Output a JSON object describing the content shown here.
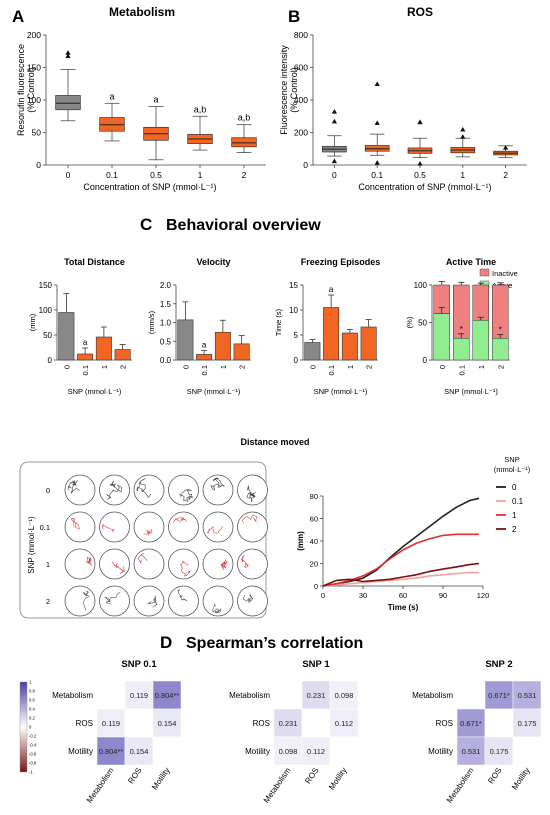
{
  "panels": {
    "A": {
      "letter": "A",
      "title": "Metabolism",
      "ylabel_1": "Resorufin fluorescence",
      "ylabel_2": "(% Control)",
      "xlabel": "Concentration of SNP (mmol·L⁻¹)"
    },
    "B": {
      "letter": "B",
      "title": "ROS",
      "ylabel_1": "Fluorescence intensity",
      "ylabel_2": "(% Control)",
      "xlabel": "Concentration of SNP (mmol·L⁻¹)"
    },
    "C": {
      "letter": "C",
      "title": "Behavioral overview"
    },
    "D": {
      "letter": "D",
      "title": "Spearman’s correlation"
    }
  },
  "colors": {
    "control": "#888888",
    "treated": "#f26522",
    "inactive": "#f08080",
    "active": "#90ee90",
    "heat_pos": "#5a4fb5",
    "heat_neg": "#8b1a1a",
    "line_0": "#222222",
    "line_01": "#f4a0a0",
    "line_1": "#e03030",
    "line_2": "#7a1010"
  },
  "chart_data": [
    {
      "id": "metabolism",
      "type": "box",
      "title": "Metabolism",
      "categories": [
        "0",
        "0.1",
        "0.5",
        "1",
        "2"
      ],
      "xlabel": "Concentration of SNP (mmol·L⁻¹)",
      "ylabel": "Resorufin fluorescence (% Control)",
      "ylim": [
        0,
        200
      ],
      "yticks": [
        "0",
        "50",
        "100",
        "150",
        "200"
      ],
      "boxes": [
        {
          "min": 68,
          "q1": 85,
          "median": 95,
          "q3": 107,
          "max": 147,
          "outliers": [
            168,
            173
          ]
        },
        {
          "min": 37,
          "q1": 52,
          "median": 62,
          "q3": 73,
          "max": 95,
          "outliers": []
        },
        {
          "min": 8,
          "q1": 38,
          "median": 48,
          "q3": 58,
          "max": 90,
          "outliers": []
        },
        {
          "min": 23,
          "q1": 33,
          "median": 40,
          "q3": 47,
          "max": 75,
          "outliers": []
        },
        {
          "min": 19,
          "q1": 28,
          "median": 34,
          "q3": 42,
          "max": 62,
          "outliers": []
        }
      ],
      "annotations": [
        "",
        "a",
        "a",
        "a,b",
        "a,b"
      ]
    },
    {
      "id": "ros",
      "type": "box",
      "title": "ROS",
      "categories": [
        "0",
        "0.1",
        "0.5",
        "1",
        "2"
      ],
      "xlabel": "Concentration of SNP (mmol·L⁻¹)",
      "ylabel": "Fluorescence intensity (% Control)",
      "ylim": [
        0,
        800
      ],
      "yticks": [
        "0",
        "200",
        "400",
        "600",
        "800"
      ],
      "boxes": [
        {
          "min": 55,
          "q1": 80,
          "median": 98,
          "q3": 115,
          "max": 180,
          "outliers": [
            330,
            270,
            25
          ]
        },
        {
          "min": 60,
          "q1": 85,
          "median": 100,
          "q3": 120,
          "max": 190,
          "outliers": [
            500,
            260,
            15
          ]
        },
        {
          "min": 45,
          "q1": 72,
          "median": 88,
          "q3": 105,
          "max": 165,
          "outliers": [
            265,
            265,
            10
          ]
        },
        {
          "min": 50,
          "q1": 75,
          "median": 92,
          "q3": 108,
          "max": 165,
          "outliers": [
            220,
            175
          ]
        },
        {
          "min": 45,
          "q1": 62,
          "median": 73,
          "q3": 85,
          "max": 118,
          "outliers": [
            108
          ]
        }
      ]
    },
    {
      "id": "total-distance",
      "type": "bar",
      "title": "Total Distance",
      "ylabel": "(mm)",
      "xlabel": "SNP (mmol·L⁻¹)",
      "categories": [
        "0",
        "0.1",
        "1",
        "2"
      ],
      "values": [
        95,
        12,
        46,
        21
      ],
      "errors": [
        38,
        12,
        20,
        10
      ],
      "ylim": [
        0,
        150
      ],
      "yticks": [
        "0",
        "50",
        "100",
        "150"
      ],
      "annotations": [
        "",
        "a",
        "",
        ""
      ]
    },
    {
      "id": "velocity",
      "type": "bar",
      "title": "Velocity",
      "ylabel": "(mm/s)",
      "xlabel": "SNP (mmol·L⁻¹)",
      "categories": [
        "0",
        "0.1",
        "1",
        "2"
      ],
      "values": [
        1.07,
        0.15,
        0.74,
        0.43
      ],
      "errors": [
        0.48,
        0.1,
        0.32,
        0.22
      ],
      "ylim": [
        0,
        2.0
      ],
      "yticks": [
        "0.0",
        "0.5",
        "1.0",
        "1.5",
        "2.0"
      ],
      "annotations": [
        "",
        "a",
        "",
        ""
      ]
    },
    {
      "id": "freezing",
      "type": "bar",
      "title": "Freezing Episodes",
      "ylabel": "Time (s)",
      "xlabel": "SNP (mmol·L⁻¹)",
      "categories": [
        "0",
        "0.1",
        "1",
        "2"
      ],
      "values": [
        3.5,
        10.5,
        5.4,
        6.6
      ],
      "errors": [
        0.6,
        2.5,
        0.7,
        1.5
      ],
      "ylim": [
        0,
        15
      ],
      "yticks": [
        "0",
        "5",
        "10",
        "15"
      ],
      "annotations": [
        "",
        "a",
        "",
        ""
      ]
    },
    {
      "id": "active-time",
      "type": "stacked-bar",
      "title": "Active Time",
      "ylabel": "(%)",
      "xlabel": "SNP (mmol·L⁻¹)",
      "categories": [
        "0",
        "0.1",
        "1",
        "2"
      ],
      "series": [
        {
          "name": "Active",
          "values": [
            62,
            29,
            53,
            29
          ],
          "errors": [
            8,
            6,
            4,
            5
          ]
        },
        {
          "name": "Inactive",
          "values": [
            38,
            71,
            47,
            71
          ],
          "errors": [
            8,
            6,
            4,
            5
          ]
        }
      ],
      "ylim": [
        0,
        100
      ],
      "yticks": [
        "0",
        "50",
        "100"
      ],
      "annotations": [
        "",
        "*",
        "",
        "*"
      ]
    },
    {
      "id": "distance-moved",
      "type": "line",
      "title": "Distance moved",
      "xlabel": "Time (s)",
      "ylabel": "(mm)",
      "xlim": [
        0,
        120
      ],
      "ylim": [
        0,
        80
      ],
      "xticks": [
        "0",
        "30",
        "60",
        "90",
        "120"
      ],
      "yticks": [
        "0",
        "20",
        "40",
        "60",
        "80"
      ],
      "legend_title": "SNP (mmol·L⁻¹)",
      "series": [
        {
          "name": "0",
          "x": [
            0,
            10,
            20,
            30,
            40,
            50,
            60,
            70,
            80,
            90,
            100,
            110,
            117
          ],
          "y": [
            0,
            2,
            4,
            7,
            14,
            25,
            35,
            44,
            53,
            62,
            70,
            76,
            78
          ]
        },
        {
          "name": "0.1",
          "x": [
            0,
            10,
            20,
            30,
            40,
            50,
            60,
            70,
            80,
            90,
            100,
            110,
            117
          ],
          "y": [
            0,
            1,
            2,
            3,
            4,
            5,
            6,
            7,
            9,
            10,
            11,
            12,
            12
          ]
        },
        {
          "name": "1",
          "x": [
            0,
            10,
            20,
            30,
            40,
            50,
            60,
            70,
            80,
            90,
            100,
            110,
            117
          ],
          "y": [
            0,
            2,
            5,
            9,
            15,
            24,
            32,
            38,
            42,
            45,
            46,
            46,
            46
          ]
        },
        {
          "name": "2",
          "x": [
            0,
            10,
            20,
            30,
            40,
            50,
            60,
            70,
            80,
            90,
            100,
            110,
            117
          ],
          "y": [
            0,
            5,
            6,
            4,
            5,
            6,
            8,
            10,
            13,
            15,
            17,
            19,
            20
          ]
        }
      ]
    },
    {
      "id": "heatmap-snp01",
      "type": "heatmap",
      "title": "SNP 0.1",
      "rows": [
        "Metabolism",
        "ROS",
        "Motility"
      ],
      "cols": [
        "Metabolism",
        "ROS",
        "Motility"
      ],
      "values": [
        [
          1,
          0.119,
          0.804
        ],
        [
          0.119,
          1,
          0.154
        ],
        [
          0.804,
          0.154,
          1
        ]
      ],
      "labels": [
        [
          "",
          "0.119",
          "0.804**"
        ],
        [
          "0.119",
          "",
          "0.154"
        ],
        [
          "0.804**",
          "0.154",
          ""
        ]
      ]
    },
    {
      "id": "heatmap-snp1",
      "type": "heatmap",
      "title": "SNP 1",
      "rows": [
        "Metabolism",
        "ROS",
        "Motility"
      ],
      "cols": [
        "Metabolism",
        "ROS",
        "Motility"
      ],
      "values": [
        [
          1,
          0.231,
          0.098
        ],
        [
          0.231,
          1,
          0.112
        ],
        [
          0.098,
          0.112,
          1
        ]
      ],
      "labels": [
        [
          "",
          "0.231",
          "0.098"
        ],
        [
          "0.231",
          "",
          "0.112"
        ],
        [
          "0.098",
          "0.112",
          ""
        ]
      ]
    },
    {
      "id": "heatmap-snp2",
      "type": "heatmap",
      "title": "SNP 2",
      "rows": [
        "Metabolism",
        "ROS",
        "Motility"
      ],
      "cols": [
        "Metabolism",
        "ROS",
        "Motility"
      ],
      "values": [
        [
          1,
          0.671,
          0.531
        ],
        [
          0.671,
          1,
          0.175
        ],
        [
          0.531,
          0.175,
          1
        ]
      ],
      "labels": [
        [
          "",
          "0.671*",
          "0.531"
        ],
        [
          "0.671*",
          "",
          "0.175"
        ],
        [
          "0.531",
          "0.175",
          ""
        ]
      ]
    }
  ],
  "colorbar": {
    "ticks": [
      "1",
      "0.8",
      "0.6",
      "0.4",
      "0.2",
      "0",
      "-0.2",
      "-0.4",
      "-0.6",
      "-0.8",
      "-1"
    ]
  },
  "tracks": {
    "title": "Distance moved",
    "ylabel": "SNP (mmol·L⁻¹)",
    "rows": [
      "0",
      "0.1",
      "1",
      "2"
    ]
  },
  "legend": {
    "active": "Active",
    "inactive": "Inactive"
  }
}
